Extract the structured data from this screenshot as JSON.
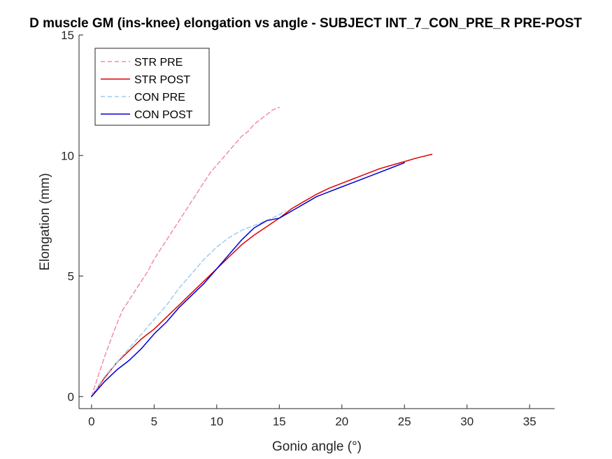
{
  "chart_data": {
    "type": "line",
    "title": "D muscle GM (ins-knee) elongation vs angle - SUBJECT INT_7_CON_PRE_R PRE-POST",
    "xlabel": "Gonio angle (°)",
    "ylabel": "Elongation (mm)",
    "xlim": [
      -1,
      37
    ],
    "ylim": [
      -0.5,
      15
    ],
    "xticks": [
      0,
      5,
      10,
      15,
      20,
      25,
      30,
      35
    ],
    "yticks": [
      0,
      5,
      10,
      15
    ],
    "grid": false,
    "legend_position": "top-left",
    "series": [
      {
        "name": "STR PRE",
        "color": "#f08cad",
        "style": "dashed",
        "x": [
          0,
          0.5,
          1,
          1.5,
          2,
          2.5,
          3,
          3.5,
          4,
          4.5,
          5,
          5.5,
          6,
          6.5,
          7,
          7.5,
          8,
          8.5,
          9,
          9.5,
          10,
          10.5,
          11,
          11.5,
          12,
          12.5,
          13,
          13.5,
          14,
          14.5,
          15
        ],
        "y": [
          0,
          0.8,
          1.6,
          2.3,
          3.0,
          3.6,
          4.0,
          4.4,
          4.8,
          5.2,
          5.7,
          6.1,
          6.5,
          6.9,
          7.3,
          7.7,
          8.1,
          8.5,
          8.9,
          9.3,
          9.6,
          9.9,
          10.2,
          10.5,
          10.8,
          11.0,
          11.3,
          11.5,
          11.7,
          11.9,
          12.0
        ]
      },
      {
        "name": "STR POST",
        "color": "#e00000",
        "style": "solid",
        "x": [
          0,
          1,
          2,
          3,
          4,
          5,
          6,
          7,
          8,
          9,
          10,
          11,
          12,
          13,
          14,
          15,
          16,
          17,
          18,
          19,
          20,
          21,
          22,
          23,
          24,
          25,
          26,
          27.2
        ],
        "y": [
          0,
          0.75,
          1.4,
          1.9,
          2.4,
          2.8,
          3.3,
          3.8,
          4.3,
          4.8,
          5.3,
          5.8,
          6.3,
          6.7,
          7.05,
          7.4,
          7.8,
          8.1,
          8.4,
          8.65,
          8.85,
          9.05,
          9.25,
          9.45,
          9.6,
          9.75,
          9.9,
          10.05
        ]
      },
      {
        "name": "CON PRE",
        "color": "#9cccf2",
        "style": "dashed",
        "x": [
          0,
          1,
          2,
          3,
          4,
          5,
          6,
          7,
          8,
          9,
          10,
          11,
          12,
          13,
          14,
          15,
          15.5
        ],
        "y": [
          0,
          0.8,
          1.4,
          2.0,
          2.6,
          3.2,
          3.8,
          4.5,
          5.1,
          5.7,
          6.2,
          6.6,
          6.9,
          7.1,
          7.3,
          7.55,
          7.7
        ]
      },
      {
        "name": "CON POST",
        "color": "#0000d6",
        "style": "solid",
        "x": [
          0,
          1,
          2,
          3,
          4,
          5,
          6,
          7,
          8,
          9,
          10,
          11,
          12,
          13,
          14,
          15,
          16,
          17,
          18,
          19,
          20,
          21,
          22,
          23,
          24,
          25
        ],
        "y": [
          0,
          0.6,
          1.1,
          1.5,
          2.0,
          2.6,
          3.1,
          3.7,
          4.2,
          4.7,
          5.3,
          5.9,
          6.5,
          7.0,
          7.3,
          7.4,
          7.7,
          8.0,
          8.3,
          8.5,
          8.7,
          8.9,
          9.1,
          9.3,
          9.5,
          9.7
        ]
      }
    ]
  }
}
